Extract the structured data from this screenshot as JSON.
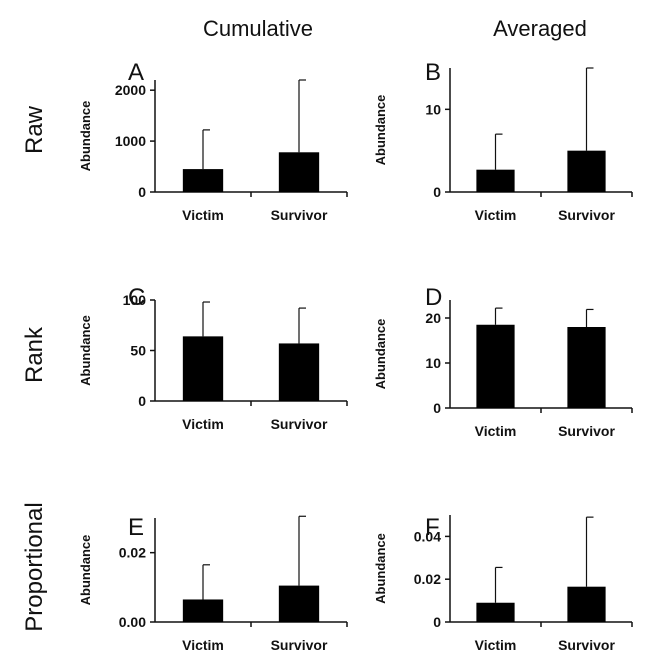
{
  "column_titles": [
    "Cumulative",
    "Averaged"
  ],
  "row_titles": [
    "Raw",
    "Rank",
    "Proportional"
  ],
  "chart_data": [
    {
      "panel": "A",
      "type": "bar",
      "categories": [
        "Victim",
        "Survivor"
      ],
      "values": [
        450,
        780
      ],
      "errors_upper": [
        1220,
        2200
      ],
      "ylabel": "Abundance",
      "ylim": [
        0,
        2200
      ],
      "yticks": [
        0,
        1000,
        2000
      ],
      "ytick_labels": [
        "0",
        "1000",
        "2000"
      ]
    },
    {
      "panel": "B",
      "type": "bar",
      "categories": [
        "Victim",
        "Survivor"
      ],
      "values": [
        2.7,
        5.0
      ],
      "errors_upper": [
        7.0,
        15.0
      ],
      "ylabel": "Abundance",
      "ylim": [
        0,
        15
      ],
      "yticks": [
        0,
        10
      ],
      "ytick_labels": [
        "0",
        "10"
      ]
    },
    {
      "panel": "C",
      "type": "bar",
      "categories": [
        "Victim",
        "Survivor"
      ],
      "values": [
        64,
        57
      ],
      "errors_upper": [
        98,
        92
      ],
      "ylabel": "Abundance",
      "ylim": [
        0,
        100
      ],
      "yticks": [
        0,
        50,
        100
      ],
      "ytick_labels": [
        "0",
        "50",
        "100"
      ]
    },
    {
      "panel": "D",
      "type": "bar",
      "categories": [
        "Victim",
        "Survivor"
      ],
      "values": [
        18.5,
        18.0
      ],
      "errors_upper": [
        22.2,
        21.9
      ],
      "ylabel": "Abundance",
      "ylim": [
        0,
        24
      ],
      "yticks": [
        0,
        10,
        20
      ],
      "ytick_labels": [
        "0",
        "10",
        "20"
      ]
    },
    {
      "panel": "E",
      "type": "bar",
      "categories": [
        "Victim",
        "Survivor"
      ],
      "values": [
        0.0065,
        0.0105
      ],
      "errors_upper": [
        0.0165,
        0.0305
      ],
      "ylabel": "Abundance",
      "ylim": [
        0,
        0.03
      ],
      "yticks": [
        0,
        0.02
      ],
      "ytick_labels": [
        "0.00",
        "0.02"
      ]
    },
    {
      "panel": "F",
      "type": "bar",
      "categories": [
        "Victim",
        "Survivor"
      ],
      "values": [
        0.009,
        0.0165
      ],
      "errors_upper": [
        0.0255,
        0.049
      ],
      "ylabel": "Abundance",
      "ylim": [
        0,
        0.05
      ],
      "yticks": [
        0,
        0.02,
        0.04
      ],
      "ytick_labels": [
        "0",
        "0.02",
        "0.04"
      ]
    }
  ]
}
